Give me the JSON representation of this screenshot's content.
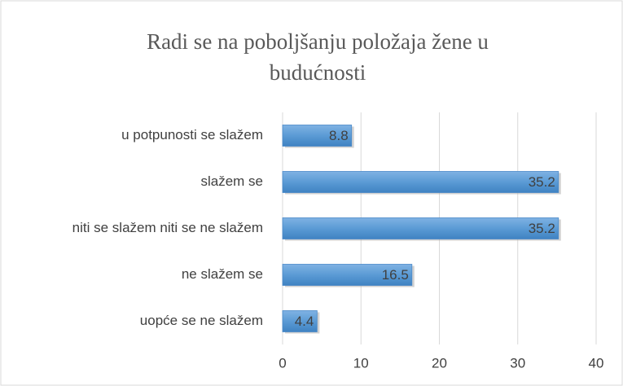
{
  "chart_data": {
    "type": "bar",
    "orientation": "horizontal",
    "title": [
      "Radi se na poboljšanju položaja žene u",
      "budućnosti"
    ],
    "categories": [
      "u potpunosti se slažem",
      "slažem se",
      "niti se slažem niti se ne slažem",
      "ne slažem se",
      "uopće se ne slažem"
    ],
    "values": [
      8.8,
      35.2,
      35.2,
      16.5,
      4.4
    ],
    "color": "#5b9bd5",
    "xlim": [
      0,
      40
    ],
    "xticks": [
      0,
      10,
      20,
      30,
      40
    ],
    "grid": true
  }
}
